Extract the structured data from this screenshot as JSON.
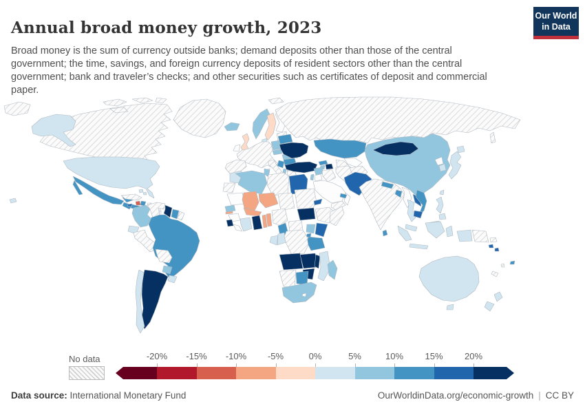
{
  "header": {
    "title": "Annual broad money growth, 2023",
    "subtitle": "Broad money is the sum of currency outside banks; demand deposits other than those of the central government; the time, savings, and foreign currency deposits of resident sectors other than the central government; bank and traveler’s checks; and other securities such as certificates of deposit and commercial paper."
  },
  "logo": {
    "line1": "Our World",
    "line2": "in Data"
  },
  "footer": {
    "datasource_label": "Data source:",
    "datasource_value": "International Monetary Fund",
    "url": "OurWorldinData.org/economic-growth",
    "separator": "|",
    "license": "CC BY"
  },
  "chart_data": {
    "type": "heatmap",
    "subtype": "world-choropleth",
    "title": "Annual broad money growth, 2023",
    "year": 2023,
    "unit": "%",
    "source": "International Monetary Fund",
    "legend": {
      "no_data_label": "No data",
      "tick_labels": [
        "-20%",
        "-15%",
        "-10%",
        "-5%",
        "0%",
        "5%",
        "10%",
        "15%",
        "20%"
      ],
      "bins": [
        {
          "range": "< -20%",
          "color": "#67001f"
        },
        {
          "range": "-20% to -15%",
          "color": "#b2182b"
        },
        {
          "range": "-15% to -10%",
          "color": "#d6604d"
        },
        {
          "range": "-10% to -5%",
          "color": "#f4a582"
        },
        {
          "range": "-5% to 0%",
          "color": "#fddbc7"
        },
        {
          "range": "0% to 5%",
          "color": "#d1e5f0"
        },
        {
          "range": "5% to 10%",
          "color": "#92c5de"
        },
        {
          "range": "10% to 15%",
          "color": "#4393c3"
        },
        {
          "range": "15% to 20%",
          "color": "#2166ac"
        },
        {
          "range": "> 20%",
          "color": "#053061"
        }
      ],
      "no_data_style": "diagonal-hatch"
    },
    "countries": {
      "united-states": {
        "name": "United States",
        "bin": "0% to 5%"
      },
      "canada": {
        "name": "Canada",
        "bin": "No data"
      },
      "greenland": {
        "name": "Greenland",
        "bin": "No data"
      },
      "mexico": {
        "name": "Mexico",
        "bin": "10% to 15%"
      },
      "guatemala": {
        "name": "Guatemala",
        "bin": "10% to 15%"
      },
      "honduras": {
        "name": "Honduras",
        "bin": "10% to 15%"
      },
      "nicaragua": {
        "name": "Nicaragua",
        "bin": "10% to 15%"
      },
      "costa-rica": {
        "name": "Costa Rica",
        "bin": "0% to 5%"
      },
      "panama": {
        "name": "Panama",
        "bin": "0% to 5%"
      },
      "cuba": {
        "name": "Cuba",
        "bin": "No data"
      },
      "haiti": {
        "name": "Haiti",
        "bin": "-15% to -10%"
      },
      "dominican-republic": {
        "name": "Dominican Republic",
        "bin": "10% to 15%"
      },
      "jamaica": {
        "name": "Jamaica",
        "bin": "15% to 20%"
      },
      "puerto-rico": {
        "name": "Puerto Rico",
        "bin": "No data"
      },
      "bahamas": {
        "name": "Bahamas",
        "bin": "0% to 5%"
      },
      "trinidad-and-tobago": {
        "name": "Trinidad and Tobago",
        "bin": "10% to 15%"
      },
      "lesser-antilles": {
        "name": "Lesser Antilles",
        "bin": "No data"
      },
      "colombia": {
        "name": "Colombia",
        "bin": "5% to 10%"
      },
      "venezuela": {
        "name": "Venezuela",
        "bin": "No data"
      },
      "guyana": {
        "name": "Guyana",
        "bin": "> 20%"
      },
      "suriname": {
        "name": "Suriname",
        "bin": "10% to 15%"
      },
      "french-guiana": {
        "name": "French Guiana",
        "bin": "No data"
      },
      "ecuador": {
        "name": "Ecuador",
        "bin": "0% to 5%"
      },
      "peru": {
        "name": "Peru",
        "bin": "No data"
      },
      "brazil": {
        "name": "Brazil",
        "bin": "10% to 15%"
      },
      "bolivia": {
        "name": "Bolivia",
        "bin": "No data"
      },
      "paraguay": {
        "name": "Paraguay",
        "bin": "5% to 10%"
      },
      "uruguay": {
        "name": "Uruguay",
        "bin": "0% to 5%"
      },
      "chile": {
        "name": "Chile",
        "bin": "0% to 5%"
      },
      "argentina": {
        "name": "Argentina",
        "bin": "> 20%"
      },
      "iceland": {
        "name": "Iceland",
        "bin": "5% to 10%"
      },
      "united-kingdom": {
        "name": "United Kingdom",
        "bin": "-5% to 0%"
      },
      "norway": {
        "name": "Norway",
        "bin": "5% to 10%"
      },
      "sweden": {
        "name": "Sweden",
        "bin": "-5% to 0%"
      },
      "denmark": {
        "name": "Denmark",
        "bin": "0% to 5%"
      },
      "baltic-states": {
        "name": "Baltic states",
        "bin": "No data"
      },
      "western-europe": {
        "name": "Western Europe (euro area)",
        "bin": "No data"
      },
      "iberia": {
        "name": "Spain and Portugal (euro area)",
        "bin": "No data"
      },
      "italy": {
        "name": "Italy (euro area)",
        "bin": "No data"
      },
      "greece": {
        "name": "Greece (euro area)",
        "bin": "No data"
      },
      "poland": {
        "name": "Poland",
        "bin": "5% to 10%"
      },
      "czechia": {
        "name": "Czechia",
        "bin": "5% to 10%"
      },
      "hungary": {
        "name": "Hungary",
        "bin": "5% to 10%"
      },
      "romania": {
        "name": "Romania",
        "bin": "10% to 15%"
      },
      "serbia": {
        "name": "Serbia",
        "bin": "10% to 15%"
      },
      "albania": {
        "name": "Albania",
        "bin": "5% to 10%"
      },
      "bulgaria": {
        "name": "Bulgaria",
        "bin": "10% to 15%"
      },
      "moldova": {
        "name": "Moldova",
        "bin": "5% to 10%"
      },
      "belarus": {
        "name": "Belarus",
        "bin": "10% to 15%"
      },
      "ukraine": {
        "name": "Ukraine",
        "bin": "> 20%"
      },
      "turkey": {
        "name": "Turkey",
        "bin": "> 20%"
      },
      "georgia": {
        "name": "Georgia",
        "bin": "10% to 15%"
      },
      "armenia": {
        "name": "Armenia",
        "bin": "5% to 10%"
      },
      "azerbaijan": {
        "name": "Azerbaijan",
        "bin": "> 20%"
      },
      "russia": {
        "name": "Russia",
        "bin": "No data"
      },
      "svalbard": {
        "name": "Svalbard",
        "bin": "No data"
      },
      "kazakhstan": {
        "name": "Kazakhstan",
        "bin": "10% to 15%"
      },
      "turkmenistan": {
        "name": "Turkmenistan",
        "bin": "No data"
      },
      "kyrgyzstan": {
        "name": "Kyrgyzstan",
        "bin": "> 20%"
      },
      "tajikistan": {
        "name": "Tajikistan",
        "bin": "10% to 15%"
      },
      "afghanistan": {
        "name": "Afghanistan",
        "bin": "No data"
      },
      "pakistan": {
        "name": "Pakistan",
        "bin": "15% to 20%"
      },
      "india": {
        "name": "India",
        "bin": "No data"
      },
      "nepal": {
        "name": "Nepal",
        "bin": "10% to 15%"
      },
      "bangladesh": {
        "name": "Bangladesh",
        "bin": "10% to 15%"
      },
      "sri-lanka": {
        "name": "Sri Lanka",
        "bin": "10% to 15%"
      },
      "china": {
        "name": "China",
        "bin": "5% to 10%"
      },
      "mongolia": {
        "name": "Mongolia",
        "bin": "> 20%"
      },
      "japan": {
        "name": "Japan",
        "bin": "0% to 5%"
      },
      "south-korea": {
        "name": "South Korea",
        "bin": "0% to 5%"
      },
      "taiwan": {
        "name": "Taiwan",
        "bin": "0% to 5%"
      },
      "philippines": {
        "name": "Philippines",
        "bin": "0% to 5%"
      },
      "vietnam": {
        "name": "Vietnam",
        "bin": "10% to 15%"
      },
      "laos": {
        "name": "Laos",
        "bin": "15% to 20%"
      },
      "cambodia": {
        "name": "Cambodia",
        "bin": "15% to 20%"
      },
      "thailand": {
        "name": "Thailand",
        "bin": "0% to 5%"
      },
      "malaysia": {
        "name": "Malaysia",
        "bin": "0% to 5%"
      },
      "indonesia": {
        "name": "Indonesia",
        "bin": "0% to 5%"
      },
      "papua-new-guinea": {
        "name": "Papua New Guinea",
        "bin": "No data"
      },
      "australia": {
        "name": "Australia",
        "bin": "0% to 5%"
      },
      "new-zealand": {
        "name": "New Zealand",
        "bin": "0% to 5%"
      },
      "fiji": {
        "name": "Fiji",
        "bin": "10% to 15%"
      },
      "solomon-islands": {
        "name": "Solomon Islands",
        "bin": "15% to 20%"
      },
      "vanuatu": {
        "name": "Vanuatu",
        "bin": "No data"
      },
      "new-caledonia": {
        "name": "New Caledonia",
        "bin": "No data"
      },
      "morocco": {
        "name": "Morocco",
        "bin": "0% to 5%"
      },
      "western-sahara": {
        "name": "Western Sahara",
        "bin": "No data"
      },
      "algeria": {
        "name": "Algeria",
        "bin": "5% to 10%"
      },
      "tunisia": {
        "name": "Tunisia",
        "bin": "5% to 10%"
      },
      "libya": {
        "name": "Libya",
        "bin": "No data"
      },
      "egypt": {
        "name": "Egypt",
        "bin": "15% to 20%"
      },
      "mali": {
        "name": "Mali",
        "bin": "-10% to -5%"
      },
      "niger": {
        "name": "Niger",
        "bin": "-10% to -5%"
      },
      "burkina-faso": {
        "name": "Burkina Faso",
        "bin": "-10% to -5%"
      },
      "chad": {
        "name": "Chad",
        "bin": "No data"
      },
      "sudan": {
        "name": "Sudan",
        "bin": "No data"
      },
      "eritrea": {
        "name": "Eritrea",
        "bin": "15% to 20%"
      },
      "senegal": {
        "name": "Senegal",
        "bin": "5% to 10%"
      },
      "gambia": {
        "name": "Gambia",
        "bin": "-10% to -5%"
      },
      "sierra-leone": {
        "name": "Sierra Leone",
        "bin": "> 20%"
      },
      "cote-divoire": {
        "name": "Cote d'Ivoire",
        "bin": "0% to 5%"
      },
      "ghana": {
        "name": "Ghana",
        "bin": "> 20%"
      },
      "togo": {
        "name": "Togo",
        "bin": "-10% to -5%"
      },
      "benin": {
        "name": "Benin",
        "bin": "-10% to -5%"
      },
      "nigeria": {
        "name": "Nigeria",
        "bin": "No data"
      },
      "cameroon": {
        "name": "Cameroon",
        "bin": "10% to 15%"
      },
      "central-african-republic": {
        "name": "Central African Republic",
        "bin": "No data"
      },
      "south-sudan": {
        "name": "South Sudan",
        "bin": "> 20%"
      },
      "ethiopia": {
        "name": "Ethiopia",
        "bin": "No data"
      },
      "somalia": {
        "name": "Somalia",
        "bin": "No data"
      },
      "kenya": {
        "name": "Kenya",
        "bin": "15% to 20%"
      },
      "uganda": {
        "name": "Uganda",
        "bin": "5% to 10%"
      },
      "rwanda": {
        "name": "Rwanda",
        "bin": "10% to 15%"
      },
      "tanzania": {
        "name": "Tanzania",
        "bin": "10% to 15%"
      },
      "gabon": {
        "name": "Gabon",
        "bin": "0% to 5%"
      },
      "congo": {
        "name": "Congo",
        "bin": "0% to 5%"
      },
      "dr-congo": {
        "name": "Democratic Republic of Congo",
        "bin": "No data"
      },
      "angola": {
        "name": "Angola",
        "bin": "> 20%"
      },
      "zambia": {
        "name": "Zambia",
        "bin": "> 20%"
      },
      "malawi": {
        "name": "Malawi",
        "bin": "> 20%"
      },
      "mozambique": {
        "name": "Mozambique",
        "bin": "0% to 5%"
      },
      "zimbabwe": {
        "name": "Zimbabwe",
        "bin": "> 20%"
      },
      "namibia": {
        "name": "Namibia",
        "bin": "No data"
      },
      "botswana": {
        "name": "Botswana",
        "bin": "10% to 15%"
      },
      "south-africa": {
        "name": "South Africa",
        "bin": "5% to 10%"
      },
      "madagascar": {
        "name": "Madagascar",
        "bin": "5% to 10%"
      },
      "iraq": {
        "name": "Iraq",
        "bin": "No data"
      },
      "iran": {
        "name": "Iran",
        "bin": "No data"
      },
      "syria": {
        "name": "Syria",
        "bin": "5% to 10%"
      },
      "israel": {
        "name": "Israel",
        "bin": "5% to 10%"
      },
      "yemen": {
        "name": "Yemen",
        "bin": "No data"
      },
      "united-arab-emirates": {
        "name": "United Arab Emirates",
        "bin": "10% to 15%"
      }
    }
  }
}
